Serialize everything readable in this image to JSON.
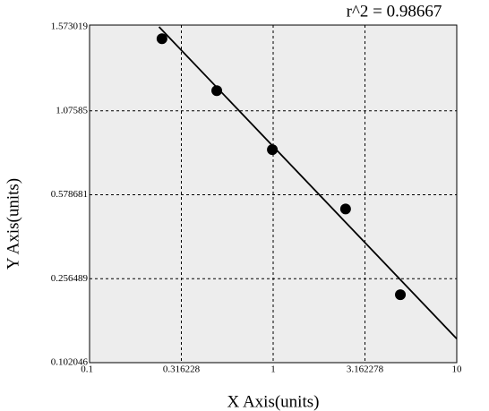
{
  "chart_data": {
    "type": "scatter",
    "annotation": "r^2  = 0.98667",
    "x_label": "X Axis(units)",
    "y_label": "Y Axis(units)",
    "x": [
      0.248,
      0.493,
      0.99,
      2.48,
      4.93
    ],
    "values": [
      1.503,
      1.195,
      0.846,
      0.524,
      0.227
    ],
    "color": "#000000",
    "fit_line": {
      "x": [
        0.239,
        10
      ],
      "y": [
        1.573019,
        0.146
      ]
    },
    "log_x": true,
    "xlim": [
      0.1,
      10
    ],
    "xticks": [
      0.1,
      0.316228,
      1,
      3.162278,
      10
    ],
    "ylim": [
      0.102046,
      1.573019
    ],
    "yticks": [
      0.102046,
      0.256489,
      0.578681,
      1.07585,
      1.573019
    ],
    "grid": true
  }
}
